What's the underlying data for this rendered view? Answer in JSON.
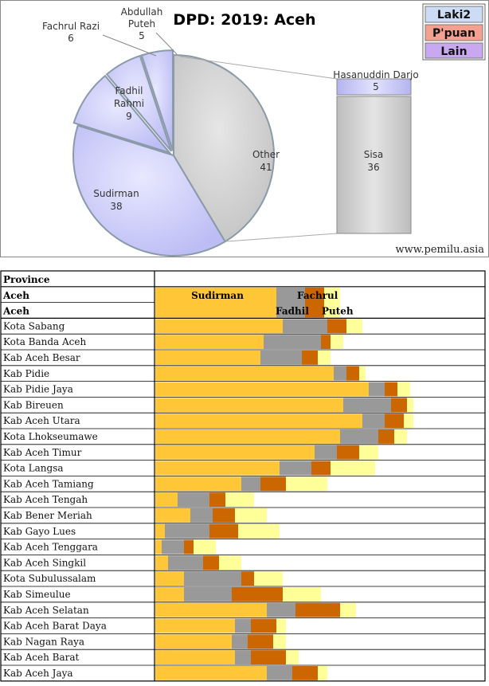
{
  "chart_data": [
    {
      "type": "pie",
      "title": "DPD: 2019: Aceh",
      "slices": [
        {
          "name": "Sudirman",
          "value": 38
        },
        {
          "name": "Fadhil Rahmi",
          "value": 9
        },
        {
          "name": "Fachrul Razi",
          "value": 6
        },
        {
          "name": "Abdullah Puteh",
          "value": 5
        },
        {
          "name": "Other",
          "value": 41
        }
      ],
      "breakout": [
        {
          "name": "Hasanuddin Darjo",
          "value": 5
        },
        {
          "name": "Sisa",
          "value": 36
        }
      ],
      "legend": [
        "Laki2",
        "P'puan",
        "Lain"
      ],
      "legend_position": "top-right",
      "watermark": "www.pemilu.asia",
      "colors": {
        "male": "#ccccff",
        "other": "#cccccc",
        "legend_laki2": "#ccdcf4",
        "legend_ppuan": "#f4a090",
        "legend_lain": "#c8a8f0"
      }
    },
    {
      "type": "bar",
      "stacked": true,
      "header": "Province",
      "header_row": [
        "Aceh",
        "Aceh"
      ],
      "bar_labels": [
        "Sudirman",
        "Fadhil",
        "Fachrul",
        "Puteh"
      ],
      "series": [
        {
          "name": "Sudirman",
          "color": "#ffc637"
        },
        {
          "name": "Fadhil",
          "color": "#999999"
        },
        {
          "name": "Fachrul",
          "color": "#cc6600"
        },
        {
          "name": "Puteh",
          "color": "#ffff99"
        }
      ],
      "summary": [
        38,
        9,
        6,
        5
      ],
      "rows": [
        {
          "region": "Kota Sabang",
          "values": [
            40,
            14,
            6,
            5
          ]
        },
        {
          "region": "Kota Banda Aceh",
          "values": [
            34,
            18,
            3,
            4
          ]
        },
        {
          "region": "Kab Aceh Besar",
          "values": [
            33,
            13,
            5,
            4
          ]
        },
        {
          "region": "Kab Pidie",
          "values": [
            56,
            4,
            4,
            2
          ]
        },
        {
          "region": "Kab Pidie Jaya",
          "values": [
            67,
            5,
            4,
            4
          ]
        },
        {
          "region": "Kab Bireuen",
          "values": [
            59,
            15,
            5,
            2
          ]
        },
        {
          "region": "Kab Aceh Utara",
          "values": [
            65,
            7,
            6,
            3
          ]
        },
        {
          "region": "Kota Lhokseumawe",
          "values": [
            58,
            12,
            5,
            4
          ]
        },
        {
          "region": "Kab Aceh Timur",
          "values": [
            50,
            7,
            7,
            6
          ]
        },
        {
          "region": "Kota Langsa",
          "values": [
            39,
            10,
            6,
            14
          ]
        },
        {
          "region": "Kab Aceh Tamiang",
          "values": [
            27,
            6,
            8,
            13
          ]
        },
        {
          "region": "Kab Aceh Tengah",
          "values": [
            7,
            10,
            5,
            9
          ]
        },
        {
          "region": "Kab Bener Meriah",
          "values": [
            11,
            7,
            7,
            10
          ]
        },
        {
          "region": "Kab Gayo Lues",
          "values": [
            3,
            14,
            9,
            13
          ]
        },
        {
          "region": "Kab Aceh Tenggara",
          "values": [
            2,
            7,
            3,
            7
          ]
        },
        {
          "region": "Kab Aceh Singkil",
          "values": [
            4,
            11,
            5,
            7
          ]
        },
        {
          "region": "Kota Subulussalam",
          "values": [
            9,
            18,
            4,
            9
          ]
        },
        {
          "region": "Kab Simeulue",
          "values": [
            9,
            15,
            16,
            12
          ]
        },
        {
          "region": "Kab Aceh Selatan",
          "values": [
            35,
            9,
            14,
            5
          ]
        },
        {
          "region": "Kab Aceh Barat Daya",
          "values": [
            25,
            5,
            8,
            3
          ]
        },
        {
          "region": "Kab Nagan Raya",
          "values": [
            24,
            5,
            8,
            4
          ]
        },
        {
          "region": "Kab Aceh Barat",
          "values": [
            25,
            5,
            11,
            4
          ]
        },
        {
          "region": "Kab Aceh Jaya",
          "values": [
            35,
            8,
            8,
            3
          ]
        }
      ]
    }
  ]
}
